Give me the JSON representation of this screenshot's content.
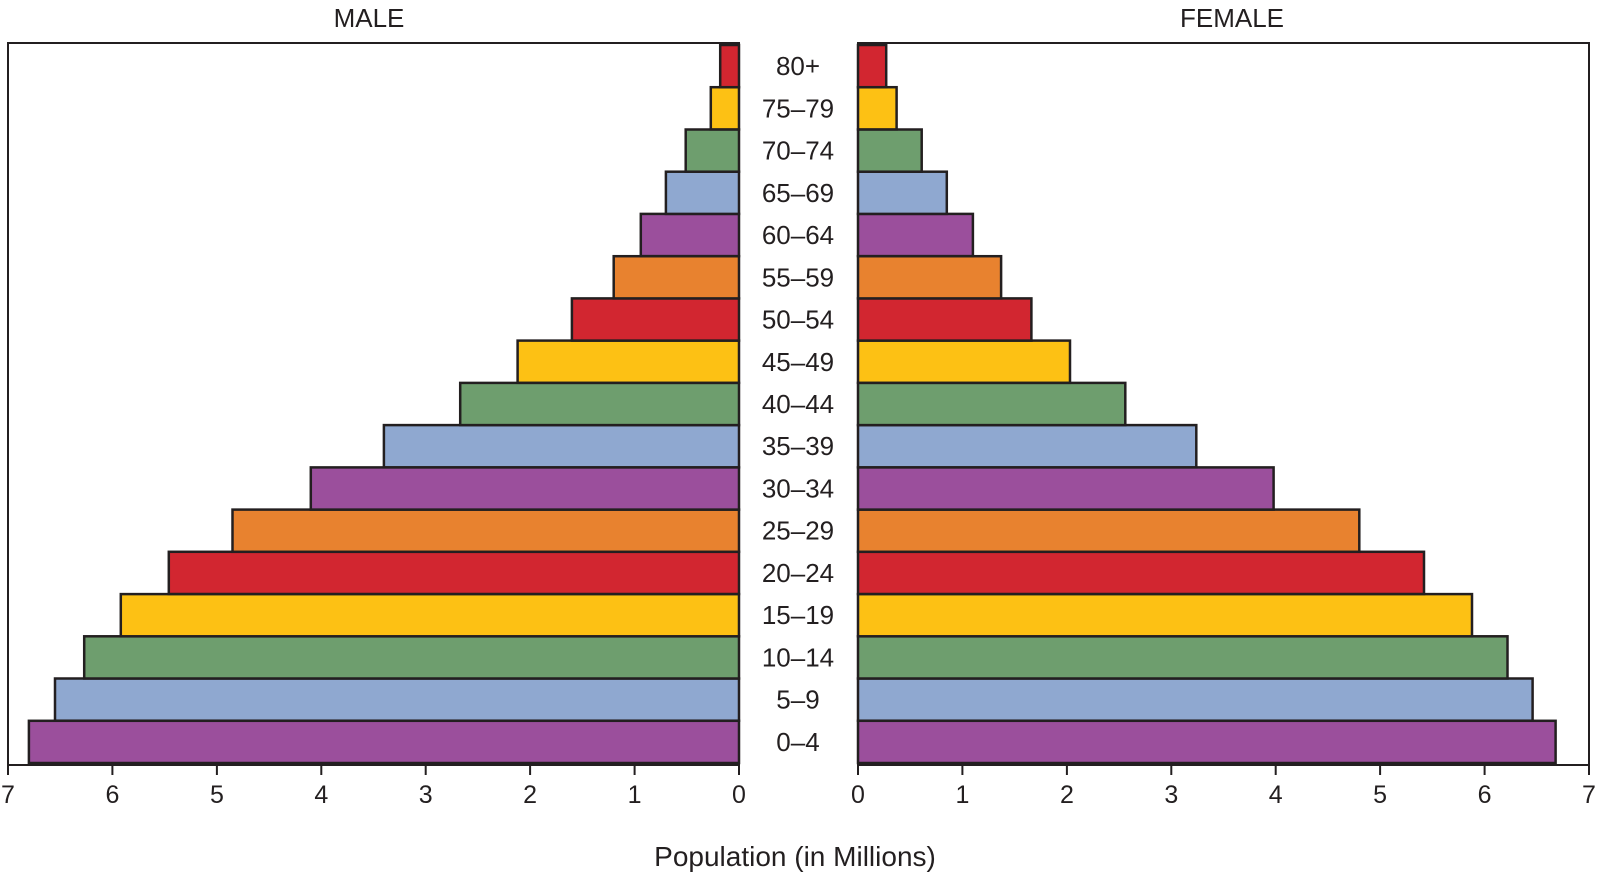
{
  "chart_data": {
    "type": "bar",
    "orientation": "horizontal",
    "layout": "population-pyramid",
    "panels": [
      {
        "title": "MALE",
        "direction": "left"
      },
      {
        "title": "FEMALE",
        "direction": "right"
      }
    ],
    "categories": [
      "0–4",
      "5–9",
      "10–14",
      "15–19",
      "20–24",
      "25–29",
      "30–34",
      "35–39",
      "40–44",
      "45–49",
      "50–54",
      "55–59",
      "60–64",
      "65–69",
      "70–74",
      "75–79",
      "80+"
    ],
    "series": [
      {
        "name": "MALE",
        "values": [
          6.8,
          6.55,
          6.27,
          5.92,
          5.46,
          4.85,
          4.1,
          3.4,
          2.67,
          2.12,
          1.6,
          1.2,
          0.94,
          0.7,
          0.51,
          0.27,
          0.18
        ]
      },
      {
        "name": "FEMALE",
        "values": [
          6.68,
          6.46,
          6.22,
          5.88,
          5.42,
          4.8,
          3.98,
          3.24,
          2.56,
          2.03,
          1.66,
          1.37,
          1.1,
          0.85,
          0.61,
          0.37,
          0.27
        ]
      }
    ],
    "bar_colors": [
      "#9b4f9c",
      "#8fa8d0",
      "#6e9e6e",
      "#fdc114",
      "#d22630",
      "#e8822f",
      "#9b4f9c",
      "#8fa8d0",
      "#6e9e6e",
      "#fdc114",
      "#d22630",
      "#e8822f",
      "#9b4f9c",
      "#8fa8d0",
      "#6e9e6e",
      "#fdc114",
      "#d22630"
    ],
    "xlim": [
      0,
      7
    ],
    "xticks": [
      0,
      1,
      2,
      3,
      4,
      5,
      6,
      7
    ],
    "xlabel": "Population (in Millions)",
    "ylabel": "",
    "title": "",
    "grid": false,
    "legend": "none"
  }
}
